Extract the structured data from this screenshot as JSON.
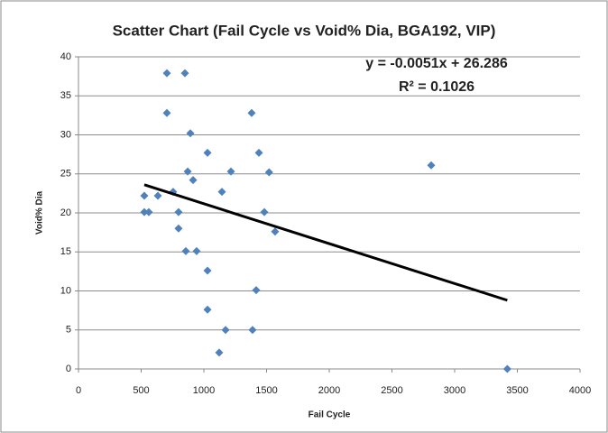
{
  "chart_data": {
    "type": "scatter",
    "title": "Scatter Chart (Fail Cycle vs Void% Dia, BGA192, VIP)",
    "x_label": "Fail Cycle",
    "y_label": "Void% Dia",
    "annotations": [
      "y = -0.0051x + 26.286",
      "R² = 0.1026"
    ],
    "series": [
      {
        "color": "#4f81bd",
        "x": [
          705,
          849,
          705,
          1381,
          892,
          1029,
          1439,
          1216,
          871,
          1520,
          914,
          525,
          633,
          755,
          1144,
          525,
          561,
          798,
          1482,
          798,
          1568,
          856,
          942,
          1029,
          1029,
          1417,
          1173,
          1388,
          1122,
          3420,
          2813
        ],
        "values": [
          37.9,
          37.9,
          32.8,
          32.8,
          30.2,
          27.7,
          27.7,
          25.3,
          25.3,
          25.2,
          24.2,
          22.2,
          22.2,
          22.7,
          22.7,
          20.1,
          20.1,
          20.1,
          20.1,
          18.0,
          17.6,
          15.1,
          15.1,
          12.6,
          7.6,
          10.1,
          5.0,
          5.0,
          2.1,
          0,
          26.1
        ]
      }
    ],
    "trendline": {
      "color": "#000000",
      "x": [
        525,
        3420
      ],
      "values": [
        23.6,
        8.8
      ]
    },
    "xlim": [
      0,
      4000
    ],
    "xticks": [
      0,
      500,
      1000,
      1500,
      2000,
      2500,
      3000,
      3500,
      4000
    ],
    "ylim": [
      0,
      40
    ],
    "yticks": [
      0,
      5,
      10,
      15,
      20,
      25,
      30,
      35,
      40
    ],
    "grid": true
  }
}
